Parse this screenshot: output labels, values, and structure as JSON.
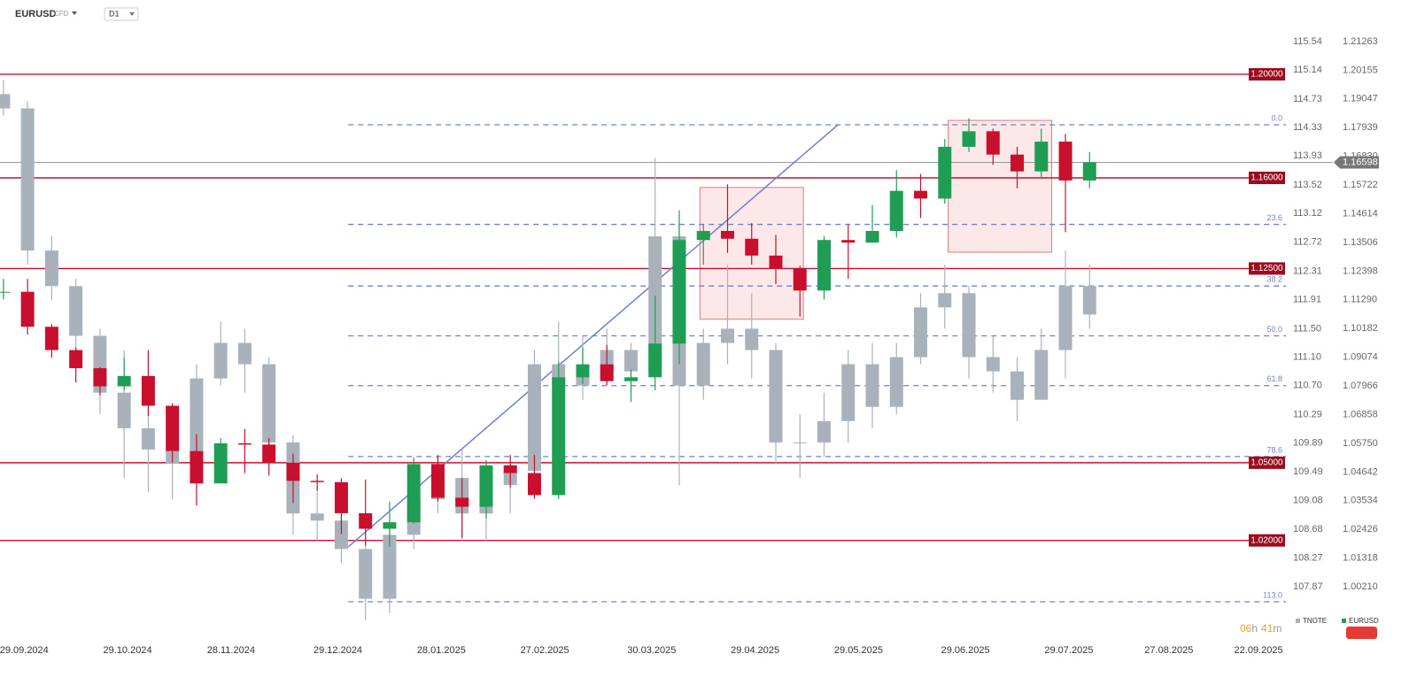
{
  "chart_data": {
    "type": "candlestick",
    "symbol": "EURUSD",
    "symbol_badge": "CFD",
    "timeframe": "D1",
    "x": [
      "23.09.2024",
      "30.09.2024",
      "07.10.2024",
      "14.10.2024",
      "21.10.2024",
      "28.10.2024",
      "04.11.2024",
      "11.11.2024",
      "18.11.2024",
      "25.11.2024",
      "02.12.2024",
      "09.12.2024",
      "16.12.2024",
      "23.12.2024",
      "30.12.2024",
      "06.01.2025",
      "13.01.2025",
      "20.01.2025",
      "27.01.2025",
      "03.02.2025",
      "10.02.2025",
      "17.02.2025",
      "24.02.2025",
      "03.03.2025",
      "10.03.2025",
      "17.03.2025",
      "24.03.2025",
      "31.03.2025",
      "07.04.2025",
      "14.04.2025",
      "21.04.2025",
      "28.04.2025",
      "05.05.2025",
      "12.05.2025",
      "19.05.2025",
      "26.05.2025",
      "02.06.2025",
      "09.06.2025",
      "16.06.2025",
      "23.06.2025",
      "30.06.2025",
      "07.07.2025",
      "14.07.2025",
      "21.07.2025",
      "28.07.2025",
      "04.08.2025"
    ],
    "series": [
      {
        "name": "TNOTE",
        "color": "#a9b2ba",
        "axis": "y2",
        "open": [
          114.8,
          114.6,
          112.6,
          112.1,
          111.4,
          110.6,
          110.1,
          109.8,
          109.6,
          110.8,
          111.3,
          111.0,
          109.9,
          108.9,
          108.8,
          108.4,
          107.7,
          108.6,
          109.1,
          109.4,
          108.9,
          109.3,
          109.5,
          111.0,
          110.7,
          110.9,
          111.2,
          110.9,
          112.8,
          110.7,
          111.3,
          111.5,
          111.2,
          109.9,
          109.9,
          110.2,
          111.0,
          110.4,
          111.1,
          111.8,
          112.0,
          111.1,
          110.9,
          110.5,
          111.2,
          112.1
        ],
        "high": [
          115.0,
          114.7,
          112.8,
          112.2,
          111.5,
          111.2,
          110.5,
          110.2,
          111.0,
          111.6,
          111.5,
          111.1,
          110.0,
          109.2,
          109.0,
          108.6,
          108.8,
          109.3,
          109.7,
          109.8,
          109.5,
          109.6,
          111.2,
          111.6,
          111.4,
          111.5,
          111.3,
          113.9,
          113.0,
          111.5,
          112.4,
          112.0,
          111.3,
          110.3,
          110.6,
          111.2,
          111.3,
          111.3,
          112.0,
          112.4,
          112.1,
          111.4,
          111.1,
          111.5,
          112.6,
          112.4
        ],
        "low": [
          114.5,
          112.4,
          111.9,
          111.2,
          110.3,
          109.4,
          109.2,
          109.1,
          109.5,
          110.7,
          110.6,
          109.6,
          108.6,
          108.5,
          108.2,
          107.4,
          107.5,
          108.4,
          108.9,
          108.5,
          108.5,
          108.9,
          109.4,
          110.4,
          110.5,
          110.7,
          110.6,
          110.8,
          109.3,
          110.5,
          111.0,
          110.8,
          109.6,
          109.4,
          109.7,
          109.9,
          110.1,
          110.3,
          111.0,
          111.5,
          110.8,
          110.6,
          110.2,
          110.5,
          110.8,
          111.5
        ],
        "close": [
          114.6,
          112.6,
          112.1,
          111.4,
          110.6,
          110.1,
          109.8,
          109.6,
          110.8,
          111.3,
          111.0,
          109.9,
          108.9,
          108.8,
          108.4,
          107.7,
          108.6,
          109.1,
          109.4,
          108.9,
          109.3,
          109.5,
          111.0,
          110.7,
          110.9,
          111.2,
          110.9,
          112.8,
          110.7,
          111.3,
          111.5,
          111.2,
          109.9,
          109.9,
          110.2,
          111.0,
          110.4,
          111.1,
          111.8,
          112.0,
          111.1,
          110.9,
          110.5,
          111.2,
          112.1,
          111.7
        ]
      },
      {
        "name": "EURUSD",
        "color": "#1f9d55",
        "down_color": "#c8102e",
        "axis": "y",
        "open": [
          1.116,
          1.116,
          1.1025,
          1.0935,
          1.0865,
          1.0795,
          1.0835,
          1.072,
          1.0545,
          1.042,
          1.0575,
          1.057,
          1.05,
          1.043,
          1.0425,
          1.0305,
          1.0245,
          1.027,
          1.0495,
          1.0365,
          1.033,
          1.049,
          1.046,
          1.0375,
          1.083,
          1.088,
          1.0815,
          1.083,
          1.096,
          1.136,
          1.1395,
          1.1365,
          1.13,
          1.125,
          1.1165,
          1.136,
          1.135,
          1.1395,
          1.155,
          1.152,
          1.172,
          1.178,
          1.169,
          1.1625,
          1.174,
          1.159
        ],
        "high": [
          1.121,
          1.121,
          1.1035,
          1.0945,
          1.087,
          1.0905,
          1.0935,
          1.073,
          1.061,
          1.0595,
          1.063,
          1.0595,
          1.0535,
          1.0455,
          1.044,
          1.0435,
          1.035,
          1.052,
          1.053,
          1.044,
          1.051,
          1.053,
          1.053,
          1.089,
          1.0945,
          1.0955,
          1.086,
          1.1145,
          1.1475,
          1.142,
          1.1575,
          1.1425,
          1.138,
          1.126,
          1.1375,
          1.142,
          1.1495,
          1.163,
          1.1615,
          1.175,
          1.183,
          1.179,
          1.172,
          1.179,
          1.177,
          1.17
        ],
        "low": [
          1.113,
          1.0995,
          1.0905,
          1.081,
          1.076,
          1.078,
          1.068,
          1.05,
          1.0335,
          1.0425,
          1.046,
          1.045,
          1.0345,
          1.039,
          1.0225,
          1.018,
          1.0175,
          1.0265,
          1.035,
          1.021,
          1.0285,
          1.0405,
          1.036,
          1.036,
          1.0805,
          1.08,
          1.0735,
          1.078,
          1.088,
          1.1265,
          1.131,
          1.1265,
          1.119,
          1.1065,
          1.113,
          1.121,
          1.135,
          1.137,
          1.1445,
          1.15,
          1.17,
          1.165,
          1.156,
          1.16,
          1.139,
          1.156
        ],
        "close": [
          1.116,
          1.1025,
          1.0935,
          1.0865,
          1.0795,
          1.0835,
          1.072,
          1.0545,
          1.042,
          1.0575,
          1.057,
          1.05,
          1.043,
          1.0425,
          1.0305,
          1.0245,
          1.027,
          1.0495,
          1.0365,
          1.033,
          1.049,
          1.046,
          1.0375,
          1.083,
          1.088,
          1.0815,
          1.083,
          1.096,
          1.136,
          1.1395,
          1.1365,
          1.13,
          1.125,
          1.1165,
          1.136,
          1.135,
          1.1395,
          1.155,
          1.152,
          1.172,
          1.178,
          1.169,
          1.1625,
          1.174,
          1.159,
          1.166
        ]
      }
    ],
    "xlim": [
      "22.09.2024",
      "02.10.2025"
    ],
    "xticks": [
      "29.09.2024",
      "29.10.2024",
      "28.11.2024",
      "29.12.2024",
      "28.01.2025",
      "27.02.2025",
      "30.03.2025",
      "29.04.2025",
      "29.05.2025",
      "29.06.2025",
      "29.07.2025",
      "27.08.2025",
      "22.09.2025"
    ],
    "ylim": [
      0.98434,
      1.22869
    ],
    "yticks": [
      1.21263,
      1.20155,
      1.19047,
      1.17939,
      {
        "value": 1.1683,
        "label": "1.16830"
      },
      1.15722,
      1.14614,
      1.13506,
      1.12398,
      {
        "value": 1.1129,
        "label": "1.11290"
      },
      1.10182,
      1.09074,
      1.07966,
      1.06858,
      {
        "value": 1.0575,
        "label": "1.05750"
      },
      1.04642,
      1.03534,
      1.02426,
      1.01318,
      {
        "value": 1.0021,
        "label": "1.00210"
      }
    ],
    "y2lim": [
      107.222,
      116.125
    ],
    "y2ticks": [
      115.54,
      115.14,
      114.73,
      114.33,
      113.93,
      113.52,
      113.12,
      112.72,
      112.31,
      111.91,
      {
        "value": 111.5,
        "label": "111.50"
      },
      {
        "value": 111.1,
        "label": "111.10"
      },
      {
        "value": 110.7,
        "label": "110.70"
      },
      110.29,
      109.89,
      109.49,
      109.08,
      108.68,
      108.27,
      107.87
    ],
    "levels": [
      {
        "value": 1.2,
        "label": "1.20000"
      },
      {
        "value": 1.16,
        "label": "1.16000"
      },
      {
        "value": 1.125,
        "label": "1.12500"
      },
      {
        "value": 1.05,
        "label": "1.05000"
      },
      {
        "value": 1.02,
        "label": "1.02000"
      }
    ],
    "level_color": "#c8102e",
    "current_price": 1.16598,
    "fibonacci": {
      "high": 1.1805,
      "low": 1.0175,
      "start": "01.01.2025",
      "color": "#6f7fcf",
      "levels": [
        {
          "value": 0,
          "label": "0.0"
        },
        23.6,
        38.2,
        {
          "value": 50,
          "label": "50.0"
        },
        61.8,
        78.6,
        {
          "value": 113,
          "label": "113.0"
        }
      ]
    },
    "trendline": {
      "x": [
        "01.01.2025",
        "23.05.2025"
      ],
      "y": [
        1.0175,
        1.1805
      ],
      "color": "#6f7fcf"
    },
    "zones": [
      {
        "x": [
          "13.04.2025",
          "13.05.2025"
        ],
        "y": [
          1.1563,
          1.1054
        ]
      },
      {
        "x": [
          "24.06.2025",
          "24.07.2025"
        ],
        "y": [
          1.1822,
          1.1313
        ]
      }
    ],
    "countdown": {
      "hours": "06",
      "hours_unit": "h",
      "minutes": "41",
      "minutes_unit": "m"
    }
  }
}
